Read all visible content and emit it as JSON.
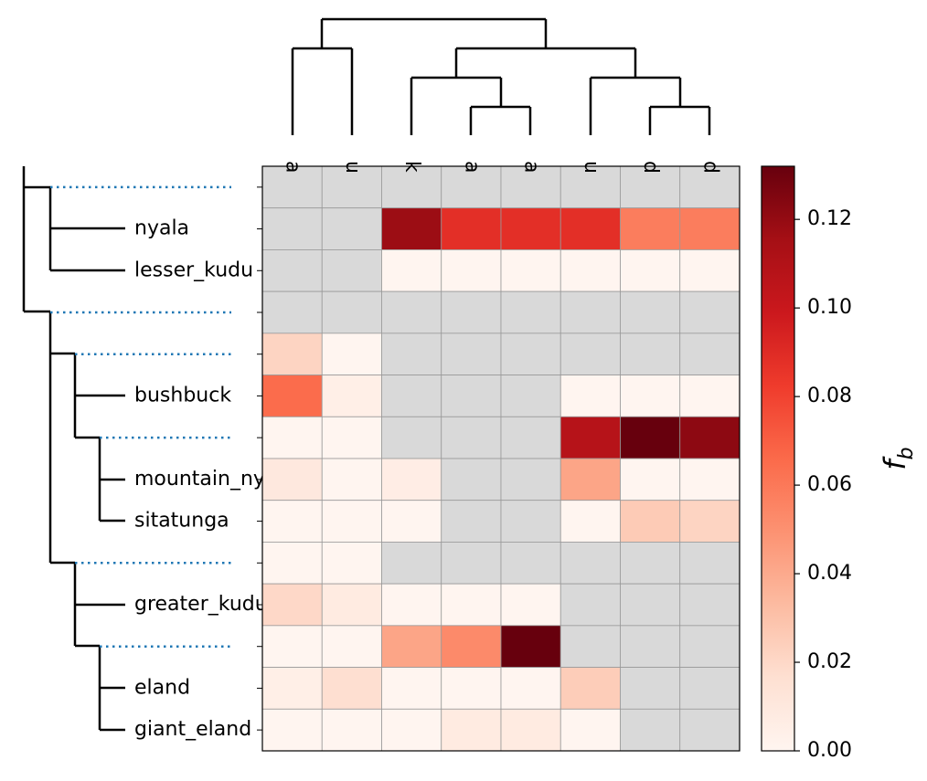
{
  "chart_data": {
    "type": "heatmap",
    "title": "",
    "column_labels": [
      "a",
      "u",
      "k",
      "a",
      "a",
      "u",
      "d",
      "d"
    ],
    "row_labels": [
      "",
      "nyala",
      "lesser_kudu",
      "",
      "",
      "bushbuck",
      "",
      "mountain_nyala",
      "sitatunga",
      "",
      "greater_kudu",
      "",
      "eland",
      "giant_eland"
    ],
    "values": [
      [
        null,
        null,
        null,
        null,
        null,
        null,
        null,
        null
      ],
      [
        null,
        null,
        0.118,
        0.088,
        0.088,
        0.088,
        0.058,
        0.058
      ],
      [
        null,
        null,
        0,
        0,
        0,
        0,
        0,
        0
      ],
      [
        null,
        null,
        null,
        null,
        null,
        null,
        null,
        null
      ],
      [
        0.022,
        0,
        null,
        null,
        null,
        null,
        null,
        null
      ],
      [
        0.065,
        0.005,
        null,
        null,
        null,
        0,
        0,
        0
      ],
      [
        0,
        0,
        null,
        null,
        null,
        0.108,
        0.132,
        0.122
      ],
      [
        0.01,
        0,
        0.006,
        null,
        null,
        0.042,
        0,
        0
      ],
      [
        0,
        0,
        0,
        null,
        null,
        0,
        0.026,
        0.022
      ],
      [
        0,
        0,
        null,
        null,
        null,
        null,
        null,
        null
      ],
      [
        0.02,
        0.008,
        0,
        0,
        0,
        null,
        null,
        null
      ],
      [
        0,
        0,
        0.042,
        0.053,
        0.132,
        null,
        null,
        null
      ],
      [
        0.005,
        0.017,
        0,
        0,
        0,
        0.025,
        null,
        null
      ],
      [
        0,
        0,
        0,
        0.008,
        0.008,
        0,
        null,
        null
      ]
    ],
    "missing_color": "#d9d9d9",
    "colormap": "Reds",
    "colorbar": {
      "label": "f_b",
      "label_main": "f",
      "label_sub": "b",
      "range": [
        0,
        0.132
      ],
      "ticks": [
        0,
        0.02,
        0.04,
        0.06,
        0.08,
        0.1,
        0.12
      ],
      "tick_labels": [
        "0.00",
        "0.02",
        "0.04",
        "0.06",
        "0.08",
        "0.10",
        "0.12"
      ]
    },
    "row_dendrogram": {
      "marker_rows": [
        0,
        3,
        4,
        6,
        9,
        11
      ],
      "marker_color": "#1f77b4"
    },
    "grid": true
  }
}
